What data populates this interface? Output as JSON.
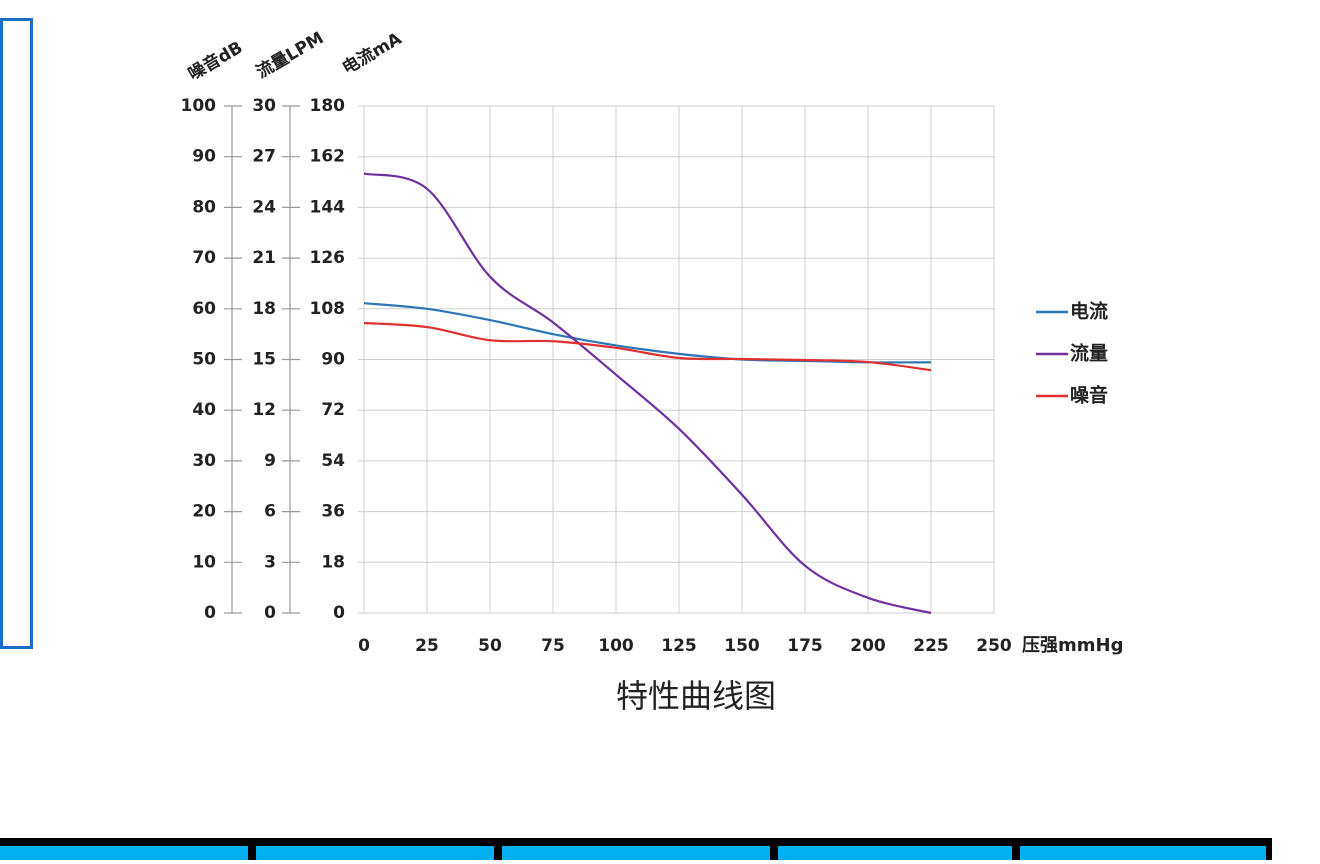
{
  "chart_data": {
    "type": "line",
    "title": "特性曲线图",
    "x_label": "压强mmHg",
    "y_label": "电流mA",
    "y2_label": "流量LPM",
    "y3_label": "噪音dB",
    "x": [
      0,
      25,
      50,
      75,
      100,
      125,
      150,
      175,
      200,
      225
    ],
    "xlim": [
      0,
      250
    ],
    "xticks": [
      0,
      25,
      50,
      75,
      100,
      125,
      150,
      175,
      200,
      225,
      250
    ],
    "ylim": [
      0,
      180
    ],
    "yticks": [
      0,
      18,
      36,
      54,
      72,
      90,
      108,
      126,
      144,
      162,
      180
    ],
    "y2lim": [
      0,
      30
    ],
    "y2ticks": [
      0,
      3,
      6,
      9,
      12,
      15,
      18,
      21,
      24,
      27,
      30
    ],
    "y3lim": [
      0,
      100
    ],
    "y3ticks": [
      0,
      10,
      20,
      30,
      40,
      50,
      60,
      70,
      80,
      90,
      100
    ],
    "grid": true,
    "legend": "right",
    "series": [
      {
        "name": "电流",
        "color": "#2e75b6",
        "axis": "y",
        "values": [
          110,
          108,
          104,
          99,
          95,
          92,
          90,
          89.5,
          89,
          89
        ]
      },
      {
        "name": "流量",
        "color": "#7030a0",
        "axis": "y2",
        "values": [
          26,
          25.1,
          19.9,
          17.2,
          14.1,
          10.9,
          7,
          2.8,
          0.9,
          0
        ]
      },
      {
        "name": "噪音",
        "color": "#e03030",
        "axis": "y3",
        "values": [
          57.2,
          56.4,
          53.8,
          53.6,
          52.3,
          50.3,
          50.1,
          49.9,
          49.5,
          47.9
        ]
      }
    ]
  }
}
